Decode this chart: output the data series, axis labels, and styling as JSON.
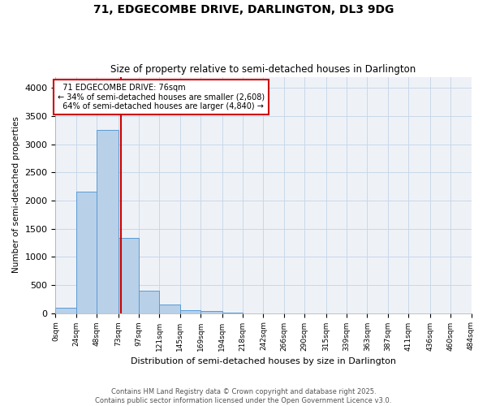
{
  "title1": "71, EDGECOMBE DRIVE, DARLINGTON, DL3 9DG",
  "title2": "Size of property relative to semi-detached houses in Darlington",
  "xlabel": "Distribution of semi-detached houses by size in Darlington",
  "ylabel": "Number of semi-detached properties",
  "bar_values": [
    100,
    2160,
    3250,
    1330,
    400,
    150,
    50,
    30,
    10,
    0,
    0,
    0,
    0,
    0,
    0,
    0,
    0,
    0,
    0,
    0
  ],
  "bin_edges": [
    0,
    24,
    48,
    73,
    97,
    121,
    145,
    169,
    194,
    218,
    242,
    266,
    290,
    315,
    339,
    363,
    387,
    411,
    436,
    460,
    484
  ],
  "x_tick_labels": [
    "0sqm",
    "24sqm",
    "48sqm",
    "73sqm",
    "97sqm",
    "121sqm",
    "145sqm",
    "169sqm",
    "194sqm",
    "218sqm",
    "242sqm",
    "266sqm",
    "290sqm",
    "315sqm",
    "339sqm",
    "363sqm",
    "387sqm",
    "411sqm",
    "436sqm",
    "460sqm",
    "484sqm"
  ],
  "property_size": 76,
  "property_label": "71 EDGECOMBE DRIVE: 76sqm",
  "smaller_pct": "34%",
  "smaller_count": "2,608",
  "larger_pct": "64%",
  "larger_count": "4,840",
  "bar_color": "#b8d0e8",
  "bar_edge_color": "#5b9bd5",
  "vline_color": "#cc0000",
  "annotation_box_color": "#cc0000",
  "ylim": [
    0,
    4200
  ],
  "ytick_vals": [
    0,
    500,
    1000,
    1500,
    2000,
    2500,
    3000,
    3500,
    4000
  ],
  "grid_color": "#c8d8e8",
  "bg_color": "#eef2f7",
  "footer1": "Contains HM Land Registry data © Crown copyright and database right 2025.",
  "footer2": "Contains public sector information licensed under the Open Government Licence v3.0."
}
